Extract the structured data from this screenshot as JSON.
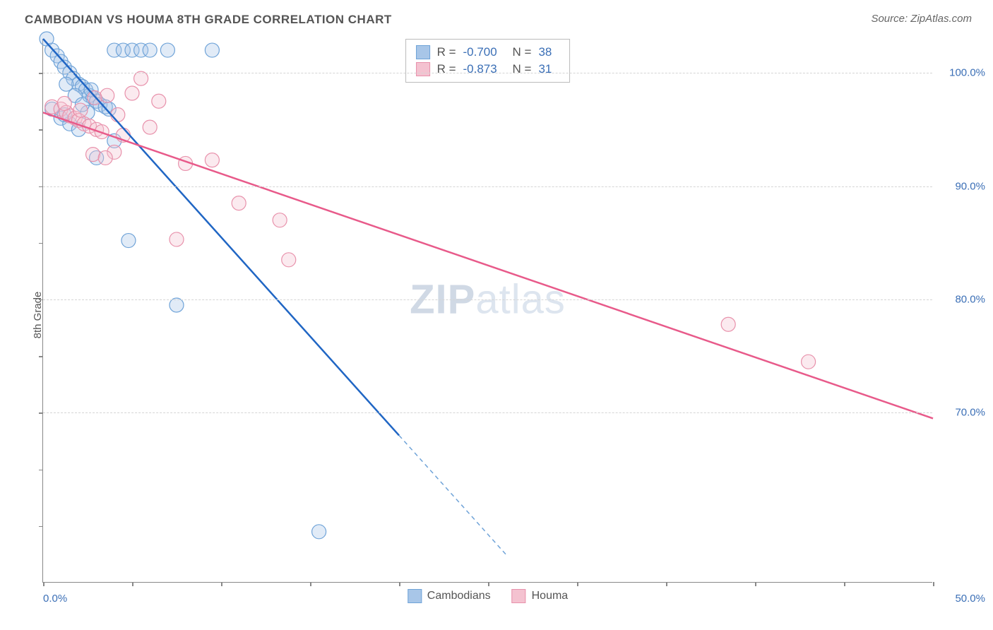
{
  "title": "CAMBODIAN VS HOUMA 8TH GRADE CORRELATION CHART",
  "source": "Source: ZipAtlas.com",
  "watermark_a": "ZIP",
  "watermark_b": "atlas",
  "ylabel": "8th Grade",
  "chart": {
    "type": "scatter-with-regression",
    "background_color": "#ffffff",
    "grid_color": "#d5d5d5",
    "axis_color": "#888888",
    "text_color": "#555555",
    "value_color": "#3b6fb6",
    "xlim": [
      0,
      50
    ],
    "ylim": [
      55,
      103
    ],
    "ytick_values": [
      70,
      80,
      90,
      100
    ],
    "ytick_labels": [
      "70.0%",
      "80.0%",
      "90.0%",
      "100.0%"
    ],
    "xtick_left": "0.0%",
    "xtick_right": "50.0%",
    "xtick_marks": [
      0,
      5,
      10,
      15,
      20,
      25,
      30,
      35,
      40,
      45,
      50
    ],
    "ytick_marks": [
      60,
      65,
      70,
      75,
      80,
      85,
      90,
      95,
      100
    ],
    "marker_radius": 10,
    "marker_opacity": 0.35,
    "line_width": 2.5,
    "series": [
      {
        "name": "Cambodians",
        "color_fill": "#a8c6e8",
        "color_stroke": "#6fa3d8",
        "line_color": "#2066c4",
        "R": "-0.700",
        "N": "38",
        "regression": {
          "x1": 0,
          "y1": 103,
          "x2": 20,
          "y2": 68
        },
        "regression_ext": {
          "x1": 20,
          "y1": 68,
          "x2": 26,
          "y2": 57.5
        },
        "points": [
          [
            0.2,
            103
          ],
          [
            0.5,
            102
          ],
          [
            0.8,
            101.5
          ],
          [
            1.0,
            101
          ],
          [
            1.2,
            100.5
          ],
          [
            1.5,
            100
          ],
          [
            1.7,
            99.5
          ],
          [
            2.0,
            99
          ],
          [
            2.2,
            98.8
          ],
          [
            2.4,
            98.5
          ],
          [
            2.6,
            98
          ],
          [
            2.8,
            97.8
          ],
          [
            3.0,
            97.5
          ],
          [
            3.2,
            97.2
          ],
          [
            3.5,
            97
          ],
          [
            3.7,
            96.8
          ],
          [
            4.0,
            102
          ],
          [
            4.5,
            102
          ],
          [
            5.0,
            102
          ],
          [
            5.5,
            102
          ],
          [
            6.0,
            102
          ],
          [
            7.0,
            102
          ],
          [
            9.5,
            102
          ],
          [
            3.0,
            92.5
          ],
          [
            4.0,
            94
          ],
          [
            0.5,
            96.8
          ],
          [
            1.0,
            96
          ],
          [
            1.5,
            95.5
          ],
          [
            2.0,
            95
          ],
          [
            2.5,
            96.5
          ],
          [
            1.8,
            98
          ],
          [
            2.2,
            97.2
          ],
          [
            1.3,
            99
          ],
          [
            4.8,
            85.2
          ],
          [
            7.5,
            79.5
          ],
          [
            15.5,
            59.5
          ],
          [
            1.2,
            96.3
          ],
          [
            2.7,
            98.5
          ]
        ]
      },
      {
        "name": "Houma",
        "color_fill": "#f4c2d0",
        "color_stroke": "#e891ab",
        "line_color": "#e85a8a",
        "R": "-0.873",
        "N": "31",
        "regression": {
          "x1": 0,
          "y1": 96.5,
          "x2": 50,
          "y2": 69.5
        },
        "points": [
          [
            0.5,
            97
          ],
          [
            1.0,
            96.8
          ],
          [
            1.3,
            96.5
          ],
          [
            1.5,
            96.2
          ],
          [
            1.8,
            96
          ],
          [
            2.0,
            95.8
          ],
          [
            2.3,
            95.5
          ],
          [
            2.6,
            95.3
          ],
          [
            3.0,
            95
          ],
          [
            3.3,
            94.8
          ],
          [
            3.6,
            98
          ],
          [
            4.0,
            93
          ],
          [
            4.5,
            94.5
          ],
          [
            5.0,
            98.2
          ],
          [
            5.5,
            99.5
          ],
          [
            6.0,
            95.2
          ],
          [
            6.5,
            97.5
          ],
          [
            2.8,
            92.8
          ],
          [
            3.5,
            92.5
          ],
          [
            7.5,
            85.3
          ],
          [
            8.0,
            92
          ],
          [
            9.5,
            92.3
          ],
          [
            11.0,
            88.5
          ],
          [
            13.3,
            87
          ],
          [
            13.8,
            83.5
          ],
          [
            38.5,
            77.8
          ],
          [
            43.0,
            74.5
          ],
          [
            1.2,
            97.3
          ],
          [
            2.1,
            96.7
          ],
          [
            2.9,
            97.8
          ],
          [
            4.2,
            96.3
          ]
        ]
      }
    ]
  },
  "legend_stats": {
    "r_label": "R =",
    "n_label": "N ="
  }
}
